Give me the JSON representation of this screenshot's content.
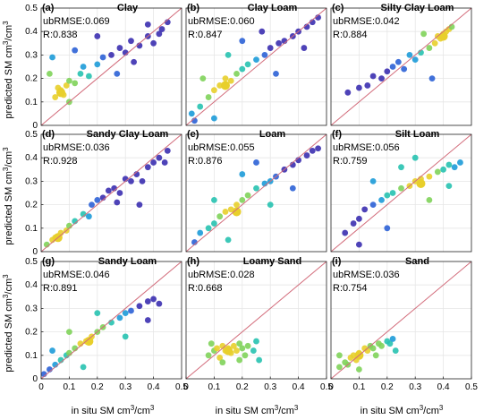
{
  "figure": {
    "ylabel_text": "predicted SM cm",
    "xlabel_text": "in situ SM cm",
    "unit_sup": "3",
    "unit_tail": "/cm",
    "ticks": [
      "0",
      "0.1",
      "0.2",
      "0.3",
      "0.4",
      "0.5"
    ]
  },
  "colors": {
    "density_scale": [
      "#3b2fb0",
      "#2c62d6",
      "#1d9bd8",
      "#27c2b0",
      "#7fd35a",
      "#e8cf2b"
    ],
    "one_to_one_line": "#d26b7a",
    "fit_line": "#3a3a3a",
    "grid": "#e6e6e6"
  },
  "chart_data": [
    {
      "type": "scatter",
      "letter": "(a)",
      "title": "Clay",
      "metrics": {
        "ubRMSE": "ubRMSE:0.069",
        "R": "R:0.838"
      },
      "xlim": [
        0,
        0.5
      ],
      "ylim": [
        0,
        0.5
      ],
      "cluster": {
        "x": 0.07,
        "y": 0.14
      },
      "points": [
        [
          0.05,
          0.12
        ],
        [
          0.06,
          0.16
        ],
        [
          0.07,
          0.15
        ],
        [
          0.08,
          0.13
        ],
        [
          0.09,
          0.17
        ],
        [
          0.1,
          0.19
        ],
        [
          0.12,
          0.18
        ],
        [
          0.14,
          0.22
        ],
        [
          0.15,
          0.25
        ],
        [
          0.17,
          0.21
        ],
        [
          0.2,
          0.26
        ],
        [
          0.22,
          0.29
        ],
        [
          0.25,
          0.3
        ],
        [
          0.28,
          0.33
        ],
        [
          0.3,
          0.31
        ],
        [
          0.32,
          0.36
        ],
        [
          0.35,
          0.34
        ],
        [
          0.38,
          0.38
        ],
        [
          0.4,
          0.35
        ],
        [
          0.42,
          0.39
        ],
        [
          0.43,
          0.41
        ],
        [
          0.45,
          0.44
        ],
        [
          0.03,
          0.22
        ],
        [
          0.04,
          0.29
        ],
        [
          0.12,
          0.32
        ],
        [
          0.2,
          0.38
        ],
        [
          0.27,
          0.22
        ],
        [
          0.33,
          0.27
        ],
        [
          0.38,
          0.43
        ],
        [
          0.1,
          0.1
        ]
      ]
    },
    {
      "type": "scatter",
      "letter": "(b)",
      "title": "Clay Loam",
      "metrics": {
        "ubRMSE": "ubRMSE:0.060",
        "R": "R:0.847"
      },
      "xlim": [
        0,
        0.5
      ],
      "ylim": [
        0,
        0.5
      ],
      "cluster": {
        "x": 0.14,
        "y": 0.17
      },
      "points": [
        [
          0.02,
          0.05
        ],
        [
          0.05,
          0.08
        ],
        [
          0.08,
          0.12
        ],
        [
          0.1,
          0.15
        ],
        [
          0.12,
          0.17
        ],
        [
          0.14,
          0.2
        ],
        [
          0.16,
          0.19
        ],
        [
          0.18,
          0.22
        ],
        [
          0.2,
          0.24
        ],
        [
          0.22,
          0.26
        ],
        [
          0.25,
          0.28
        ],
        [
          0.28,
          0.3
        ],
        [
          0.3,
          0.33
        ],
        [
          0.33,
          0.35
        ],
        [
          0.35,
          0.36
        ],
        [
          0.38,
          0.38
        ],
        [
          0.4,
          0.4
        ],
        [
          0.43,
          0.42
        ],
        [
          0.45,
          0.44
        ],
        [
          0.47,
          0.46
        ],
        [
          0.03,
          0.02
        ],
        [
          0.1,
          0.03
        ],
        [
          0.06,
          0.2
        ],
        [
          0.2,
          0.36
        ],
        [
          0.32,
          0.22
        ],
        [
          0.42,
          0.33
        ],
        [
          0.15,
          0.3
        ],
        [
          0.27,
          0.4
        ]
      ]
    },
    {
      "type": "scatter",
      "letter": "(c)",
      "title": "Silty Clay Loam",
      "metrics": {
        "ubRMSE": "ubRMSE:0.042",
        "R": "R:0.884"
      },
      "xlim": [
        0,
        0.5
      ],
      "ylim": [
        0,
        0.5
      ],
      "cluster": {
        "x": 0.4,
        "y": 0.38
      },
      "points": [
        [
          0.06,
          0.14
        ],
        [
          0.1,
          0.16
        ],
        [
          0.13,
          0.17
        ],
        [
          0.15,
          0.21
        ],
        [
          0.18,
          0.2
        ],
        [
          0.2,
          0.23
        ],
        [
          0.22,
          0.25
        ],
        [
          0.24,
          0.27
        ],
        [
          0.26,
          0.24
        ],
        [
          0.28,
          0.3
        ],
        [
          0.3,
          0.28
        ],
        [
          0.32,
          0.31
        ],
        [
          0.35,
          0.33
        ],
        [
          0.37,
          0.35
        ],
        [
          0.38,
          0.38
        ],
        [
          0.39,
          0.37
        ],
        [
          0.4,
          0.39
        ],
        [
          0.41,
          0.4
        ],
        [
          0.42,
          0.41
        ],
        [
          0.43,
          0.42
        ],
        [
          0.33,
          0.39
        ],
        [
          0.36,
          0.2
        ]
      ]
    },
    {
      "type": "scatter",
      "letter": "(d)",
      "title": "Sandy Clay Loam",
      "metrics": {
        "ubRMSE": "ubRMSE:0.036",
        "R": "R:0.928"
      },
      "xlim": [
        0,
        0.5
      ],
      "ylim": [
        0,
        0.5
      ],
      "cluster": {
        "x": 0.06,
        "y": 0.06
      },
      "points": [
        [
          0.02,
          0.03
        ],
        [
          0.04,
          0.05
        ],
        [
          0.05,
          0.06
        ],
        [
          0.07,
          0.08
        ],
        [
          0.09,
          0.09
        ],
        [
          0.1,
          0.11
        ],
        [
          0.12,
          0.13
        ],
        [
          0.15,
          0.16
        ],
        [
          0.17,
          0.15
        ],
        [
          0.18,
          0.2
        ],
        [
          0.2,
          0.22
        ],
        [
          0.22,
          0.23
        ],
        [
          0.24,
          0.26
        ],
        [
          0.26,
          0.27
        ],
        [
          0.28,
          0.25
        ],
        [
          0.3,
          0.31
        ],
        [
          0.32,
          0.3
        ],
        [
          0.34,
          0.33
        ],
        [
          0.36,
          0.3
        ],
        [
          0.38,
          0.36
        ],
        [
          0.4,
          0.38
        ],
        [
          0.42,
          0.4
        ],
        [
          0.44,
          0.38
        ],
        [
          0.45,
          0.43
        ],
        [
          0.27,
          0.21
        ],
        [
          0.35,
          0.2
        ]
      ]
    },
    {
      "type": "scatter",
      "letter": "(e)",
      "title": "Loam",
      "metrics": {
        "ubRMSE": "ubRMSE:0.055",
        "R": "R:0.876"
      },
      "xlim": [
        0,
        0.5
      ],
      "ylim": [
        0,
        0.5
      ],
      "cluster": {
        "x": 0.18,
        "y": 0.17
      },
      "points": [
        [
          0.03,
          0.04
        ],
        [
          0.05,
          0.08
        ],
        [
          0.08,
          0.1
        ],
        [
          0.1,
          0.12
        ],
        [
          0.12,
          0.15
        ],
        [
          0.14,
          0.17
        ],
        [
          0.16,
          0.18
        ],
        [
          0.18,
          0.2
        ],
        [
          0.2,
          0.22
        ],
        [
          0.22,
          0.24
        ],
        [
          0.25,
          0.27
        ],
        [
          0.28,
          0.29
        ],
        [
          0.3,
          0.3
        ],
        [
          0.32,
          0.32
        ],
        [
          0.35,
          0.35
        ],
        [
          0.38,
          0.37
        ],
        [
          0.4,
          0.39
        ],
        [
          0.43,
          0.41
        ],
        [
          0.45,
          0.43
        ],
        [
          0.47,
          0.44
        ],
        [
          0.1,
          0.22
        ],
        [
          0.2,
          0.33
        ],
        [
          0.3,
          0.2
        ],
        [
          0.38,
          0.27
        ],
        [
          0.15,
          0.05
        ],
        [
          0.25,
          0.38
        ]
      ]
    },
    {
      "type": "scatter",
      "letter": "(f)",
      "title": "Silt Loam",
      "metrics": {
        "ubRMSE": "ubRMSE:0.056",
        "R": "R:0.759"
      },
      "xlim": [
        0,
        0.5
      ],
      "ylim": [
        0,
        0.5
      ],
      "cluster": {
        "x": 0.32,
        "y": 0.29
      },
      "points": [
        [
          0.05,
          0.08
        ],
        [
          0.08,
          0.12
        ],
        [
          0.1,
          0.14
        ],
        [
          0.12,
          0.18
        ],
        [
          0.15,
          0.2
        ],
        [
          0.18,
          0.22
        ],
        [
          0.2,
          0.24
        ],
        [
          0.22,
          0.25
        ],
        [
          0.25,
          0.27
        ],
        [
          0.28,
          0.28
        ],
        [
          0.3,
          0.3
        ],
        [
          0.32,
          0.31
        ],
        [
          0.35,
          0.32
        ],
        [
          0.38,
          0.34
        ],
        [
          0.4,
          0.35
        ],
        [
          0.42,
          0.37
        ],
        [
          0.44,
          0.36
        ],
        [
          0.46,
          0.38
        ],
        [
          0.15,
          0.3
        ],
        [
          0.25,
          0.36
        ],
        [
          0.35,
          0.22
        ],
        [
          0.42,
          0.28
        ],
        [
          0.2,
          0.1
        ],
        [
          0.3,
          0.4
        ],
        [
          0.1,
          0.03
        ]
      ]
    },
    {
      "type": "scatter",
      "letter": "(g)",
      "title": "Sandy Loam",
      "metrics": {
        "ubRMSE": "ubRMSE:0.046",
        "R": "R:0.891"
      },
      "xlim": [
        0,
        0.5
      ],
      "ylim": [
        0,
        0.5
      ],
      "cluster": {
        "x": 0.17,
        "y": 0.16
      },
      "points": [
        [
          0.01,
          0.02
        ],
        [
          0.03,
          0.04
        ],
        [
          0.05,
          0.06
        ],
        [
          0.07,
          0.08
        ],
        [
          0.09,
          0.1
        ],
        [
          0.1,
          0.11
        ],
        [
          0.12,
          0.13
        ],
        [
          0.14,
          0.15
        ],
        [
          0.16,
          0.16
        ],
        [
          0.18,
          0.18
        ],
        [
          0.2,
          0.2
        ],
        [
          0.22,
          0.22
        ],
        [
          0.25,
          0.24
        ],
        [
          0.28,
          0.26
        ],
        [
          0.3,
          0.28
        ],
        [
          0.32,
          0.29
        ],
        [
          0.35,
          0.31
        ],
        [
          0.38,
          0.33
        ],
        [
          0.4,
          0.34
        ],
        [
          0.42,
          0.32
        ],
        [
          0.04,
          0.12
        ],
        [
          0.1,
          0.2
        ],
        [
          0.2,
          0.28
        ],
        [
          0.3,
          0.18
        ],
        [
          0.15,
          0.05
        ],
        [
          0.38,
          0.25
        ]
      ]
    },
    {
      "type": "scatter",
      "letter": "(h)",
      "title": "Loamy Sand",
      "metrics": {
        "ubRMSE": "ubRMSE:0.028",
        "R": "R:0.668"
      },
      "xlim": [
        0,
        0.5
      ],
      "ylim": [
        0,
        0.5
      ],
      "cluster": {
        "x": 0.15,
        "y": 0.12
      },
      "points": [
        [
          0.08,
          0.1
        ],
        [
          0.1,
          0.12
        ],
        [
          0.11,
          0.13
        ],
        [
          0.12,
          0.09
        ],
        [
          0.13,
          0.14
        ],
        [
          0.14,
          0.12
        ],
        [
          0.15,
          0.13
        ],
        [
          0.16,
          0.11
        ],
        [
          0.17,
          0.14
        ],
        [
          0.18,
          0.12
        ],
        [
          0.19,
          0.15
        ],
        [
          0.2,
          0.13
        ],
        [
          0.21,
          0.1
        ],
        [
          0.22,
          0.14
        ],
        [
          0.24,
          0.12
        ],
        [
          0.09,
          0.15
        ],
        [
          0.13,
          0.07
        ],
        [
          0.19,
          0.08
        ],
        [
          0.26,
          0.08
        ],
        [
          0.25,
          0.16
        ]
      ]
    },
    {
      "type": "scatter",
      "letter": "(i)",
      "title": "Sand",
      "metrics": {
        "ubRMSE": "ubRMSE:0.036",
        "R": "R:0.754"
      },
      "xlim": [
        0,
        0.5
      ],
      "ylim": [
        0,
        0.5
      ],
      "cluster": {
        "x": 0.1,
        "y": 0.1
      },
      "points": [
        [
          0.03,
          0.05
        ],
        [
          0.05,
          0.07
        ],
        [
          0.06,
          0.06
        ],
        [
          0.07,
          0.09
        ],
        [
          0.08,
          0.1
        ],
        [
          0.09,
          0.08
        ],
        [
          0.1,
          0.11
        ],
        [
          0.12,
          0.13
        ],
        [
          0.13,
          0.12
        ],
        [
          0.14,
          0.14
        ],
        [
          0.15,
          0.13
        ],
        [
          0.17,
          0.15
        ],
        [
          0.18,
          0.14
        ],
        [
          0.2,
          0.16
        ],
        [
          0.21,
          0.15
        ],
        [
          0.22,
          0.17
        ],
        [
          0.03,
          0.1
        ],
        [
          0.1,
          0.04
        ],
        [
          0.16,
          0.1
        ],
        [
          0.23,
          0.12
        ]
      ]
    }
  ]
}
